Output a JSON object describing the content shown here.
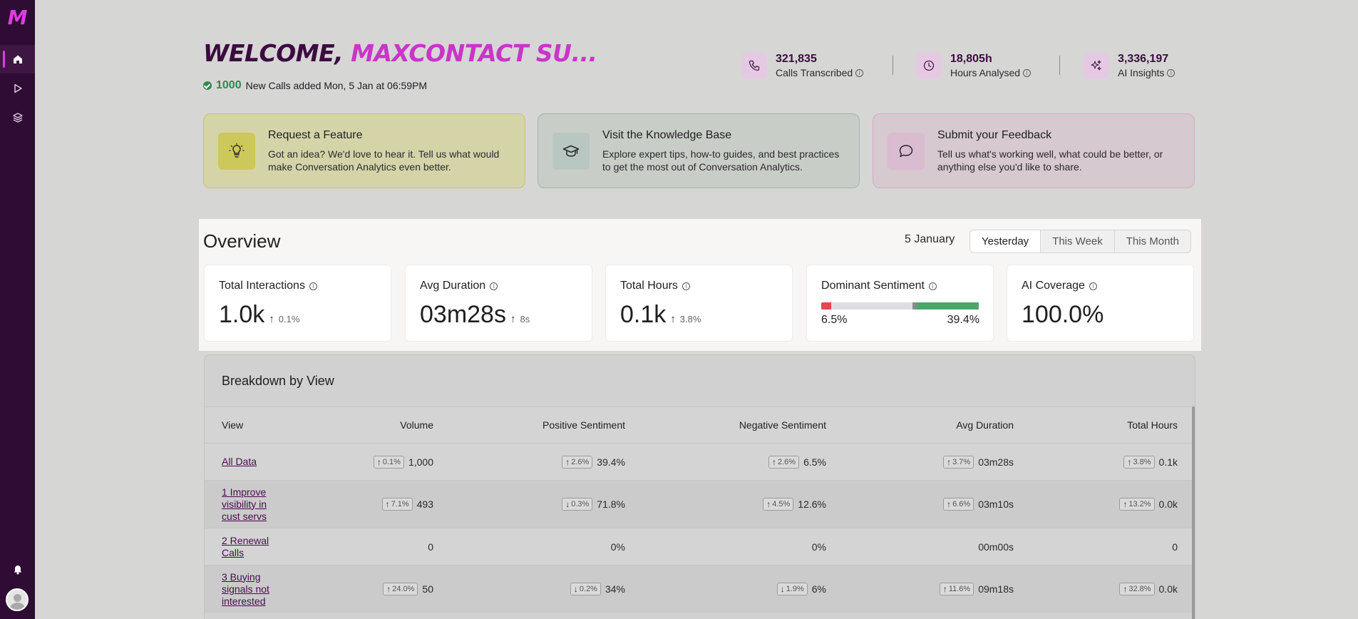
{
  "sidebar": {
    "logo": "M",
    "items": [
      {
        "name": "home-icon",
        "active": true
      },
      {
        "name": "play-icon",
        "active": false
      },
      {
        "name": "layers-icon",
        "active": false
      }
    ],
    "bottom": [
      {
        "name": "bell-icon"
      },
      {
        "name": "avatar"
      }
    ]
  },
  "header": {
    "welcome_prefix": "WELCOME,",
    "welcome_name": "MAXCONTACT SU...",
    "new_calls_count": "1000",
    "new_calls_text": "New Calls added Mon, 5 Jan at 06:59PM"
  },
  "stats": [
    {
      "icon": "phone-icon",
      "value": "321,835",
      "label": "Calls Transcribed"
    },
    {
      "icon": "clock-icon",
      "value": "18,805h",
      "label": "Hours Analysed"
    },
    {
      "icon": "sparkles-icon",
      "value": "3,336,197",
      "label": "AI Insights"
    }
  ],
  "cards": [
    {
      "icon": "lightbulb-icon",
      "title": "Request a Feature",
      "desc": "Got an idea? We'd love to hear it. Tell us what would make Conversation Analytics even better."
    },
    {
      "icon": "graduation-cap-icon",
      "title": "Visit the Knowledge Base",
      "desc": "Explore expert tips, how-to guides, and best practices to get the most out of Conversation Analytics."
    },
    {
      "icon": "chat-bubble-icon",
      "title": "Submit your Feedback",
      "desc": "Tell us what's working well, what could be better, or anything else you'd like to share."
    }
  ],
  "overview": {
    "title": "Overview",
    "date": "5 January",
    "tabs": [
      "Yesterday",
      "This Week",
      "This Month"
    ],
    "selected_tab": "Yesterday",
    "kpis": [
      {
        "label": "Total Interactions",
        "value": "1.0k",
        "delta": "0.1%"
      },
      {
        "label": "Avg Duration",
        "value": "03m28s",
        "delta": "8s"
      },
      {
        "label": "Total Hours",
        "value": "0.1k",
        "delta": "3.8%"
      },
      {
        "label": "Dominant Sentiment",
        "negative": "6.5%",
        "positive": "39.4%",
        "negative_fraction": 0.065,
        "neutral_fraction": 0.541,
        "positive_fraction": 0.394,
        "colors": {
          "negative": "#e5464f",
          "neutral": "#dedde3",
          "mid": "#8b8b8b",
          "positive": "#47a86a"
        }
      },
      {
        "label": "AI Coverage",
        "value": "100.0%"
      }
    ]
  },
  "breakdown": {
    "title": "Breakdown by View",
    "columns": [
      "View",
      "Volume",
      "Positive Sentiment",
      "Negative Sentiment",
      "Avg Duration",
      "Total Hours"
    ],
    "rows": [
      {
        "view": "All Data",
        "volume": {
          "dir": "up",
          "delta": "0.1%",
          "value": "1,000"
        },
        "pos": {
          "dir": "up",
          "delta": "2.6%",
          "value": "39.4%"
        },
        "neg": {
          "dir": "up",
          "delta": "2.6%",
          "value": "6.5%"
        },
        "dur": {
          "dir": "up",
          "delta": "3.7%",
          "value": "03m28s"
        },
        "hours": {
          "dir": "up",
          "delta": "3.8%",
          "value": "0.1k"
        }
      },
      {
        "view": "1 Improve visibility in cust servs",
        "volume": {
          "dir": "up",
          "delta": "7.1%",
          "value": "493"
        },
        "pos": {
          "dir": "down",
          "delta": "0.3%",
          "value": "71.8%"
        },
        "neg": {
          "dir": "up",
          "delta": "4.5%",
          "value": "12.6%"
        },
        "dur": {
          "dir": "up",
          "delta": "6.6%",
          "value": "03m10s"
        },
        "hours": {
          "dir": "up",
          "delta": "13.2%",
          "value": "0.0k"
        }
      },
      {
        "view": "2 Renewal Calls",
        "volume": {
          "dir": "",
          "delta": "",
          "value": "0"
        },
        "pos": {
          "dir": "",
          "delta": "",
          "value": "0%"
        },
        "neg": {
          "dir": "",
          "delta": "",
          "value": "0%"
        },
        "dur": {
          "dir": "",
          "delta": "",
          "value": "00m00s"
        },
        "hours": {
          "dir": "",
          "delta": "",
          "value": "0"
        }
      },
      {
        "view": "3 Buying signals not interested",
        "volume": {
          "dir": "up",
          "delta": "24.0%",
          "value": "50"
        },
        "pos": {
          "dir": "down",
          "delta": "0.2%",
          "value": "34%"
        },
        "neg": {
          "dir": "down",
          "delta": "1.9%",
          "value": "6%"
        },
        "dur": {
          "dir": "up",
          "delta": "11.6%",
          "value": "09m18s"
        },
        "hours": {
          "dir": "up",
          "delta": "32.8%",
          "value": "0.0k"
        }
      }
    ]
  }
}
